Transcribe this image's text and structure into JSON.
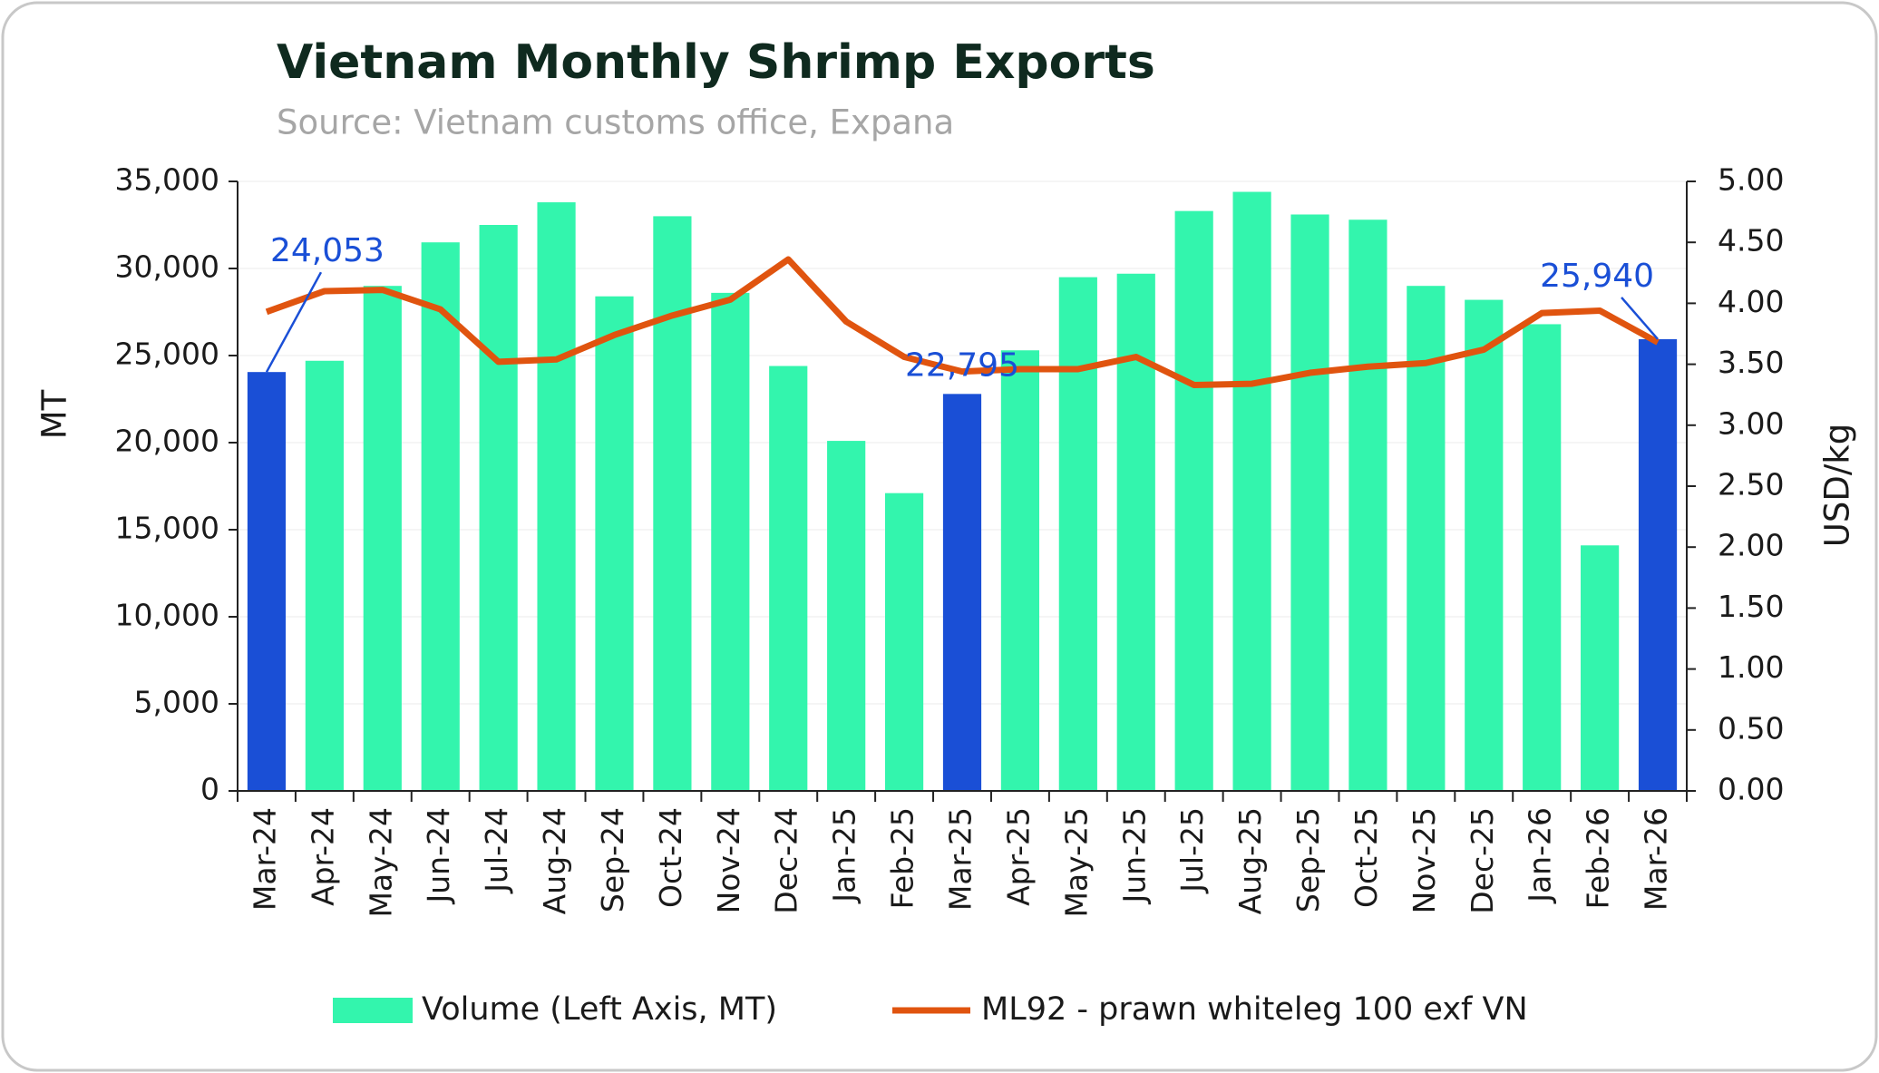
{
  "chart_data": {
    "type": "bar_line",
    "title": "Vietnam Monthly Shrimp Exports",
    "subtitle": "Source: Vietnam customs office, Expana",
    "y_label": "MT",
    "y2_label": "USD/kg",
    "categories": [
      "Mar-24",
      "Apr-24",
      "May-24",
      "Jun-24",
      "Jul-24",
      "Aug-24",
      "Sep-24",
      "Oct-24",
      "Nov-24",
      "Dec-24",
      "Jan-25",
      "Feb-25",
      "Mar-25",
      "Apr-25",
      "May-25",
      "Jun-25",
      "Jul-25",
      "Aug-25",
      "Sep-25",
      "Oct-25",
      "Nov-25",
      "Dec-25",
      "Jan-26",
      "Feb-26",
      "Mar-26"
    ],
    "series": [
      {
        "name": "Volume (Left Axis, MT)",
        "type": "bar",
        "color": "#33f5ad",
        "colors": [
          "#1a4fd6",
          "#33f5ad",
          "#33f5ad",
          "#33f5ad",
          "#33f5ad",
          "#33f5ad",
          "#33f5ad",
          "#33f5ad",
          "#33f5ad",
          "#33f5ad",
          "#33f5ad",
          "#33f5ad",
          "#1a4fd6",
          "#33f5ad",
          "#33f5ad",
          "#33f5ad",
          "#33f5ad",
          "#33f5ad",
          "#33f5ad",
          "#33f5ad",
          "#33f5ad",
          "#33f5ad",
          "#33f5ad",
          "#33f5ad",
          "#1a4fd6"
        ],
        "values": [
          24053,
          24700,
          29000,
          31500,
          32500,
          33800,
          28400,
          33000,
          28600,
          24400,
          20100,
          17100,
          22795,
          25300,
          29500,
          29700,
          33300,
          34400,
          33100,
          32800,
          29000,
          28200,
          26800,
          14100,
          25940
        ],
        "value_labels": [
          "24,053",
          null,
          null,
          null,
          null,
          null,
          null,
          null,
          null,
          null,
          null,
          null,
          "22,795",
          null,
          null,
          null,
          null,
          null,
          null,
          null,
          null,
          null,
          null,
          null,
          "25,940"
        ],
        "label_color": "#1a4fd6"
      },
      {
        "name": "ML92 - prawn whiteleg 100 exf VN",
        "type": "line",
        "axis": "y2",
        "color": "#e0540f",
        "values": [
          3.93,
          4.1,
          4.11,
          3.95,
          3.52,
          3.54,
          3.74,
          3.9,
          4.03,
          4.36,
          3.85,
          3.56,
          3.44,
          3.46,
          3.46,
          3.56,
          3.33,
          3.34,
          3.43,
          3.48,
          3.51,
          3.62,
          3.92,
          3.94,
          3.68
        ]
      }
    ],
    "ylim": [
      0,
      35000
    ],
    "yticks": [
      0,
      {
        "value": 5000,
        "label": "5,000"
      },
      {
        "value": 10000,
        "label": "10,000"
      },
      {
        "value": 15000,
        "label": "15,000"
      },
      {
        "value": 20000,
        "label": "20,000"
      },
      {
        "value": 25000,
        "label": "25,000"
      },
      {
        "value": 30000,
        "label": "30,000"
      },
      {
        "value": 35000,
        "label": "35,000"
      }
    ],
    "y2lim": [
      0,
      5
    ],
    "y2ticks": [
      {
        "value": 0,
        "label": "0.00"
      },
      {
        "value": 0.5,
        "label": "0.50"
      },
      {
        "value": 1,
        "label": "1.00"
      },
      {
        "value": 1.5,
        "label": "1.50"
      },
      {
        "value": 2,
        "label": "2.00"
      },
      {
        "value": 2.5,
        "label": "2.50"
      },
      {
        "value": 3,
        "label": "3.00"
      },
      {
        "value": 3.5,
        "label": "3.50"
      },
      {
        "value": 4,
        "label": "4.00"
      },
      {
        "value": 4.5,
        "label": "4.50"
      },
      {
        "value": 5,
        "label": "5.00"
      }
    ],
    "grid": true,
    "legend": "bottom"
  }
}
